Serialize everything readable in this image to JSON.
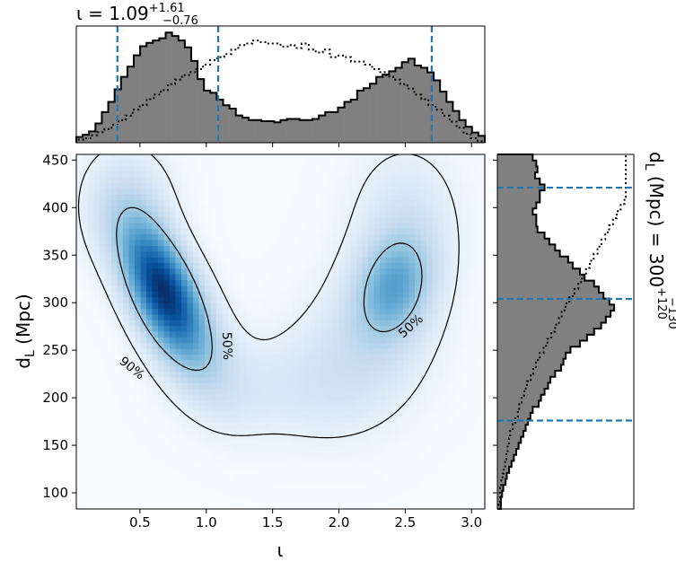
{
  "chart_data": {
    "type": "corner-plot",
    "title_iota": {
      "base": "ι = 1.09",
      "sup": "+1.61",
      "sub": "−0.76"
    },
    "title_dl": {
      "base": "d",
      "sub_var": "L",
      "unit": "(Mpc) = 300",
      "sup": "+120",
      "sub": "−130"
    },
    "xlabel": "ι",
    "ylabel": {
      "base": "d",
      "sub": "L",
      "unit": "(Mpc)"
    },
    "xlim": [
      0.02,
      3.1
    ],
    "ylim": [
      83,
      456
    ],
    "x_ticks": [
      0.5,
      1.0,
      1.5,
      2.0,
      2.5,
      3.0
    ],
    "x_tick_labels": [
      "0.5",
      "1.0",
      "1.5",
      "2.0",
      "2.5",
      "3.0"
    ],
    "y_ticks": [
      100,
      150,
      200,
      250,
      300,
      350,
      400,
      450
    ],
    "y_tick_labels": [
      "100",
      "150",
      "200",
      "250",
      "300",
      "350",
      "400",
      "450"
    ],
    "iota_quantiles": [
      0.33,
      1.09,
      2.7
    ],
    "dl_quantiles": [
      176,
      304,
      421
    ],
    "contour_levels": [
      "50%",
      "90%"
    ],
    "colormap": "Blues",
    "histogram_color": "#808080",
    "quantile_color": "#1f77b4",
    "kde_components": [
      {
        "x": 0.66,
        "y": 318,
        "sx": 0.2,
        "sy": 46,
        "rho": -0.55,
        "w": 1.0
      },
      {
        "x": 0.78,
        "y": 285,
        "sx": 0.28,
        "sy": 58,
        "rho": -0.6,
        "w": 0.55
      },
      {
        "x": 2.42,
        "y": 318,
        "sx": 0.2,
        "sy": 38,
        "rho": 0.2,
        "w": 0.62
      },
      {
        "x": 2.2,
        "y": 255,
        "sx": 0.38,
        "sy": 62,
        "rho": 0.2,
        "w": 0.28
      },
      {
        "x": 1.5,
        "y": 210,
        "sx": 0.45,
        "sy": 40,
        "rho": 0.0,
        "w": 0.16
      },
      {
        "x": 2.5,
        "y": 395,
        "sx": 0.3,
        "sy": 55,
        "rho": 0.0,
        "w": 0.22
      },
      {
        "x": 0.4,
        "y": 405,
        "sx": 0.25,
        "sy": 45,
        "rho": 0.0,
        "w": 0.28
      }
    ],
    "iota_hist_posterior": [
      0.05,
      0.07,
      0.1,
      0.17,
      0.27,
      0.36,
      0.47,
      0.58,
      0.67,
      0.77,
      0.85,
      0.88,
      0.9,
      0.92,
      0.97,
      0.94,
      0.9,
      0.84,
      0.72,
      0.56,
      0.46,
      0.44,
      0.38,
      0.33,
      0.3,
      0.24,
      0.22,
      0.2,
      0.2,
      0.19,
      0.19,
      0.18,
      0.2,
      0.21,
      0.21,
      0.2,
      0.2,
      0.21,
      0.24,
      0.27,
      0.27,
      0.31,
      0.36,
      0.38,
      0.46,
      0.48,
      0.52,
      0.58,
      0.6,
      0.63,
      0.66,
      0.71,
      0.74,
      0.68,
      0.66,
      0.62,
      0.55,
      0.45,
      0.36,
      0.28,
      0.2,
      0.14,
      0.09,
      0.06
    ],
    "iota_hist_prior": [
      0.02,
      0.03,
      0.05,
      0.07,
      0.09,
      0.12,
      0.15,
      0.18,
      0.22,
      0.25,
      0.29,
      0.32,
      0.35,
      0.39,
      0.42,
      0.45,
      0.47,
      0.49,
      0.52,
      0.55,
      0.57,
      0.59,
      0.62,
      0.65,
      0.66,
      0.68,
      0.67,
      0.66,
      0.66,
      0.64,
      0.65,
      0.63,
      0.66,
      0.62,
      0.6,
      0.62,
      0.57,
      0.58,
      0.57,
      0.54,
      0.54,
      0.52,
      0.49,
      0.47,
      0.44,
      0.42,
      0.39,
      0.36,
      0.32,
      0.29,
      0.25,
      0.22,
      0.18,
      0.14,
      0.1,
      0.06,
      0.03,
      0.01
    ],
    "dl_hist_posterior": [
      0.03,
      0.03,
      0.04,
      0.05,
      0.07,
      0.08,
      0.1,
      0.12,
      0.14,
      0.16,
      0.18,
      0.2,
      0.22,
      0.24,
      0.26,
      0.28,
      0.3,
      0.35,
      0.37,
      0.4,
      0.43,
      0.45,
      0.49,
      0.54,
      0.56,
      0.58,
      0.62,
      0.7,
      0.76,
      0.82,
      0.88,
      0.92,
      0.96,
      0.99,
      0.95,
      0.9,
      0.86,
      0.82,
      0.74,
      0.7,
      0.64,
      0.6,
      0.53,
      0.49,
      0.44,
      0.4,
      0.34,
      0.33,
      0.33,
      0.3,
      0.33,
      0.36,
      0.36,
      0.4,
      0.36,
      0.32,
      0.34,
      0.33,
      0.3
    ],
    "dl_hist_prior": [
      0.01,
      0.02,
      0.02,
      0.03,
      0.04,
      0.05,
      0.06,
      0.07,
      0.08,
      0.09,
      0.1,
      0.12,
      0.14,
      0.16,
      0.17,
      0.19,
      0.21,
      0.23,
      0.26,
      0.28,
      0.3,
      0.33,
      0.36,
      0.39,
      0.42,
      0.45,
      0.48,
      0.5,
      0.53,
      0.56,
      0.6,
      0.63,
      0.66,
      0.69,
      0.72,
      0.75,
      0.78,
      0.81,
      0.84,
      0.87,
      0.9,
      0.93,
      0.96,
      0.99,
      1.0,
      1.0,
      1.0,
      1.0,
      1.0,
      1.0
    ]
  }
}
